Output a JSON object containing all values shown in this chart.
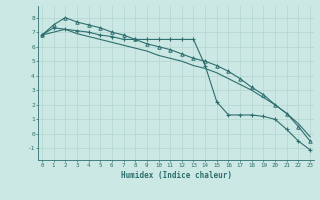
{
  "xlabel": "Humidex (Indice chaleur)",
  "bg_color": "#cce8e4",
  "line_color": "#2d6e6e",
  "grid_color": "#b8d8d4",
  "xlim": [
    -0.3,
    23.3
  ],
  "ylim": [
    -1.8,
    8.8
  ],
  "yticks": [
    -1,
    0,
    1,
    2,
    3,
    4,
    5,
    6,
    7,
    8
  ],
  "xticks": [
    0,
    1,
    2,
    3,
    4,
    5,
    6,
    7,
    8,
    9,
    10,
    11,
    12,
    13,
    14,
    15,
    16,
    17,
    18,
    19,
    20,
    21,
    22,
    23
  ],
  "series_jagged_x": [
    0,
    1,
    2,
    3,
    4,
    5,
    6,
    7,
    8,
    9,
    10,
    11,
    12,
    13,
    14,
    15,
    16,
    17,
    18,
    19,
    20,
    21,
    22,
    23
  ],
  "series_jagged_y": [
    6.8,
    7.3,
    7.2,
    7.1,
    7.0,
    6.8,
    6.7,
    6.5,
    6.5,
    6.5,
    6.5,
    6.5,
    6.5,
    6.5,
    4.7,
    2.2,
    1.3,
    1.3,
    1.3,
    1.2,
    1.0,
    0.3,
    -0.5,
    -1.1
  ],
  "series_upper_x": [
    0,
    1,
    2,
    3,
    4,
    5,
    6,
    7,
    8,
    9,
    10,
    11,
    12,
    13,
    14,
    15,
    16,
    17,
    18,
    19,
    20,
    21,
    22,
    23
  ],
  "series_upper_y": [
    6.8,
    7.5,
    8.0,
    7.7,
    7.5,
    7.3,
    7.0,
    6.8,
    6.5,
    6.2,
    6.0,
    5.8,
    5.5,
    5.2,
    5.0,
    4.7,
    4.3,
    3.8,
    3.2,
    2.7,
    2.0,
    1.4,
    0.5,
    -0.5
  ],
  "series_lower_x": [
    0,
    1,
    2,
    3,
    4,
    5,
    6,
    7,
    8,
    9,
    10,
    11,
    12,
    13,
    14,
    15,
    16,
    17,
    18,
    19,
    20,
    21,
    22,
    23
  ],
  "series_lower_y": [
    6.8,
    7.0,
    7.2,
    6.9,
    6.7,
    6.5,
    6.3,
    6.1,
    5.9,
    5.7,
    5.4,
    5.2,
    5.0,
    4.7,
    4.5,
    4.2,
    3.8,
    3.4,
    3.0,
    2.5,
    2.0,
    1.4,
    0.7,
    -0.2
  ]
}
